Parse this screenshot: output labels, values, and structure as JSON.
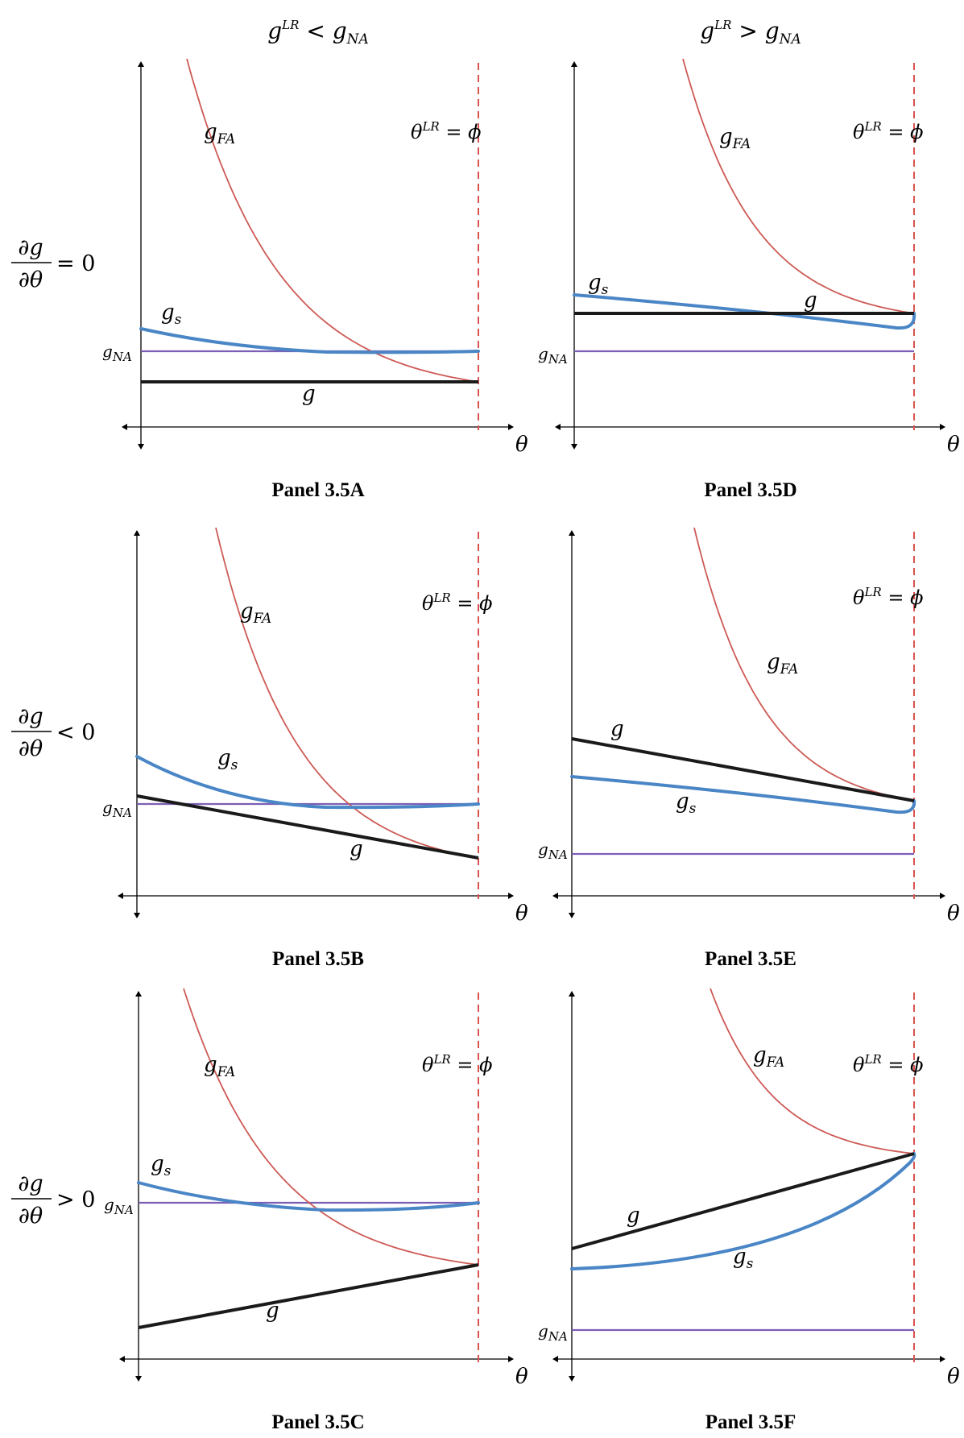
{
  "column_headers": [
    {
      "base": "g",
      "sup": "LR",
      "op": " < ",
      "base2": "g",
      "sub2": "NA"
    },
    {
      "base": "g",
      "sup": "LR",
      "op": " > ",
      "base2": "g",
      "sub2": "NA"
    }
  ],
  "row_headers": [
    {
      "num": "∂g",
      "den": "∂θ",
      "rel": "= 0"
    },
    {
      "num": "∂g",
      "den": "∂θ",
      "rel": "< 0"
    },
    {
      "num": "∂g",
      "den": "∂θ",
      "rel": "> 0"
    }
  ],
  "labels": {
    "theta_axis": "θ",
    "asymptote_base": "θ",
    "asymptote_sup": "LR",
    "asymptote_rest": " = ϕ",
    "g_base": "g",
    "sub_FA": "FA",
    "sub_s": "s",
    "sub_NA": "NA"
  },
  "colors": {
    "g_FA": "#cd5a55",
    "g_s": "#4a86c6",
    "g_NA": "#7b5fb5",
    "g": "#1a1a1a",
    "asymptote": "#d9534f",
    "axis": "#000000"
  },
  "panels": [
    {
      "id": "A",
      "title": "Panel 3.5A",
      "slope": "= 0",
      "gLR_vs_gNA": "<"
    },
    {
      "id": "D",
      "title": "Panel 3.5D",
      "slope": "= 0",
      "gLR_vs_gNA": ">"
    },
    {
      "id": "B",
      "title": "Panel 3.5B",
      "slope": "< 0",
      "gLR_vs_gNA": "<"
    },
    {
      "id": "E",
      "title": "Panel 3.5E",
      "slope": "< 0",
      "gLR_vs_gNA": ">"
    },
    {
      "id": "C",
      "title": "Panel 3.5C",
      "slope": "> 0",
      "gLR_vs_gNA": "<"
    },
    {
      "id": "F",
      "title": "Panel 3.5F",
      "slope": "> 0",
      "gLR_vs_gNA": ">"
    }
  ]
}
